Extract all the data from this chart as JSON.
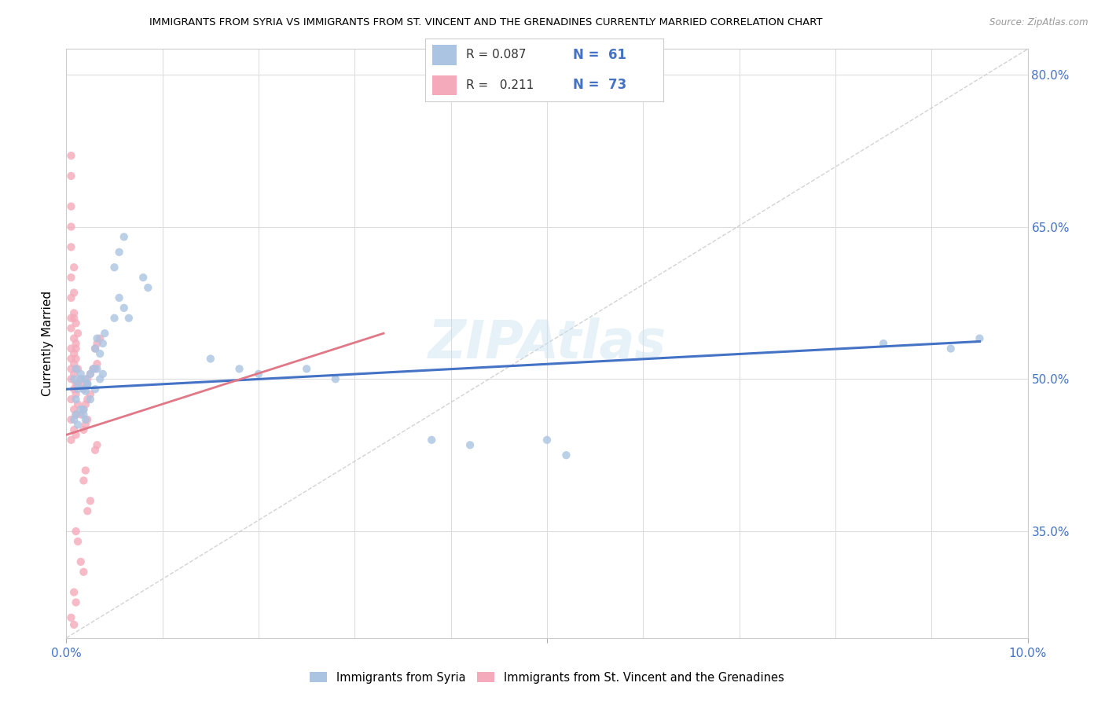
{
  "title": "IMMIGRANTS FROM SYRIA VS IMMIGRANTS FROM ST. VINCENT AND THE GRENADINES CURRENTLY MARRIED CORRELATION CHART",
  "source": "Source: ZipAtlas.com",
  "ylabel": "Currently Married",
  "xlim": [
    0.0,
    0.1
  ],
  "ylim": [
    0.245,
    0.825
  ],
  "yticks_right": [
    0.35,
    0.5,
    0.65,
    0.8
  ],
  "ytick_right_labels": [
    "35.0%",
    "50.0%",
    "65.0%",
    "80.0%"
  ],
  "watermark": "ZIPAtlas",
  "color_syria": "#aac4e2",
  "color_svg": "#f5aabb",
  "color_syria_line": "#4472c4",
  "color_svg_line": "#e07888",
  "color_diag": "#c8c8c8",
  "scatter_alpha": 0.8,
  "scatter_size": 55,
  "syria_x": [
    0.0008,
    0.001,
    0.0012,
    0.0015,
    0.0018,
    0.002,
    0.0022,
    0.0025,
    0.0028,
    0.001,
    0.0012,
    0.0015,
    0.0018,
    0.002,
    0.0022,
    0.0025,
    0.0008,
    0.001,
    0.0012,
    0.0015,
    0.0018,
    0.002,
    0.003,
    0.0032,
    0.0035,
    0.0038,
    0.004,
    0.003,
    0.0032,
    0.0035,
    0.0038,
    0.005,
    0.0055,
    0.006,
    0.0065,
    0.005,
    0.0055,
    0.006,
    0.008,
    0.0085,
    0.015,
    0.018,
    0.02,
    0.025,
    0.028,
    0.038,
    0.042,
    0.05,
    0.052,
    0.085,
    0.092,
    0.095
  ],
  "syria_y": [
    0.5,
    0.51,
    0.495,
    0.505,
    0.49,
    0.5,
    0.495,
    0.505,
    0.51,
    0.48,
    0.49,
    0.5,
    0.47,
    0.488,
    0.495,
    0.48,
    0.46,
    0.465,
    0.455,
    0.47,
    0.465,
    0.46,
    0.53,
    0.54,
    0.525,
    0.535,
    0.545,
    0.49,
    0.51,
    0.5,
    0.505,
    0.56,
    0.58,
    0.57,
    0.56,
    0.61,
    0.625,
    0.64,
    0.6,
    0.59,
    0.52,
    0.51,
    0.505,
    0.51,
    0.5,
    0.44,
    0.435,
    0.44,
    0.425,
    0.535,
    0.53,
    0.54
  ],
  "svg_x": [
    0.0005,
    0.0008,
    0.001,
    0.0012,
    0.0015,
    0.0005,
    0.0008,
    0.001,
    0.0012,
    0.0005,
    0.0008,
    0.001,
    0.0012,
    0.0015,
    0.0005,
    0.0008,
    0.001,
    0.0005,
    0.0008,
    0.001,
    0.0012,
    0.0005,
    0.0008,
    0.001,
    0.0005,
    0.0008,
    0.001,
    0.0005,
    0.0008,
    0.001,
    0.0005,
    0.0008,
    0.0005,
    0.0008,
    0.0005,
    0.0008,
    0.0005,
    0.0005,
    0.0005,
    0.0005,
    0.0018,
    0.002,
    0.0022,
    0.0025,
    0.0028,
    0.0018,
    0.002,
    0.0022,
    0.0025,
    0.0018,
    0.002,
    0.0022,
    0.003,
    0.0032,
    0.0035,
    0.003,
    0.0032,
    0.003,
    0.0032,
    0.002,
    0.0018,
    0.0025,
    0.0022,
    0.001,
    0.0012,
    0.0015,
    0.0018,
    0.0008,
    0.001,
    0.0005,
    0.0008,
    0.0005
  ],
  "svg_y": [
    0.5,
    0.505,
    0.495,
    0.51,
    0.5,
    0.48,
    0.49,
    0.485,
    0.495,
    0.46,
    0.47,
    0.465,
    0.475,
    0.465,
    0.44,
    0.45,
    0.445,
    0.53,
    0.54,
    0.535,
    0.545,
    0.55,
    0.56,
    0.555,
    0.52,
    0.525,
    0.53,
    0.51,
    0.515,
    0.52,
    0.56,
    0.565,
    0.58,
    0.585,
    0.6,
    0.61,
    0.63,
    0.65,
    0.67,
    0.7,
    0.49,
    0.495,
    0.5,
    0.505,
    0.51,
    0.47,
    0.475,
    0.48,
    0.485,
    0.45,
    0.455,
    0.46,
    0.53,
    0.535,
    0.54,
    0.51,
    0.515,
    0.43,
    0.435,
    0.41,
    0.4,
    0.38,
    0.37,
    0.35,
    0.34,
    0.32,
    0.31,
    0.29,
    0.28,
    0.265,
    0.258,
    0.72
  ]
}
